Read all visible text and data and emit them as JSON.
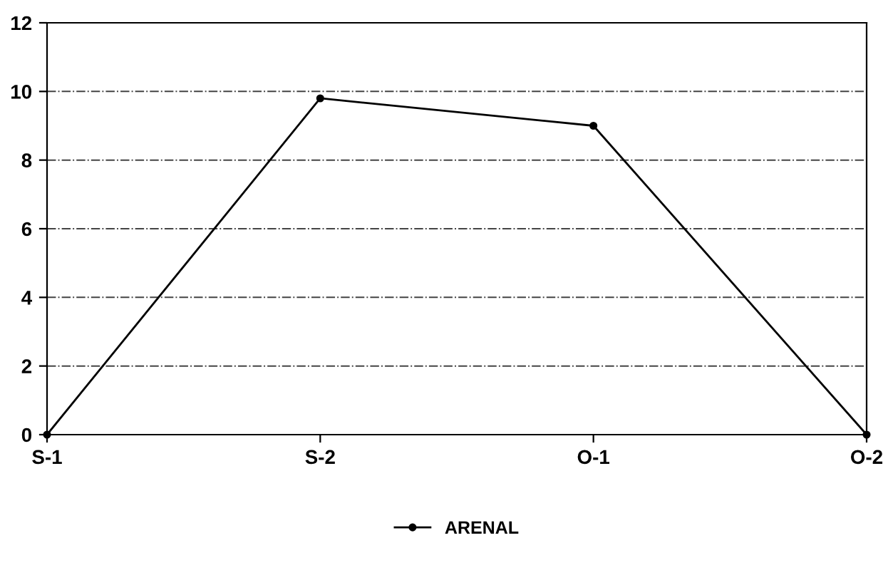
{
  "chart_data": {
    "type": "line",
    "categories": [
      "S-1",
      "S-2",
      "O-1",
      "O-2"
    ],
    "series": [
      {
        "name": "ARENAL",
        "color": "#000000",
        "values": [
          0,
          9.8,
          9.0,
          0
        ]
      }
    ],
    "ylim": [
      0,
      12
    ],
    "yticks": [
      0,
      2,
      4,
      6,
      8,
      10,
      12
    ],
    "grid": "y",
    "legend": "bottom",
    "marker": "circle",
    "line_style": "solid"
  }
}
